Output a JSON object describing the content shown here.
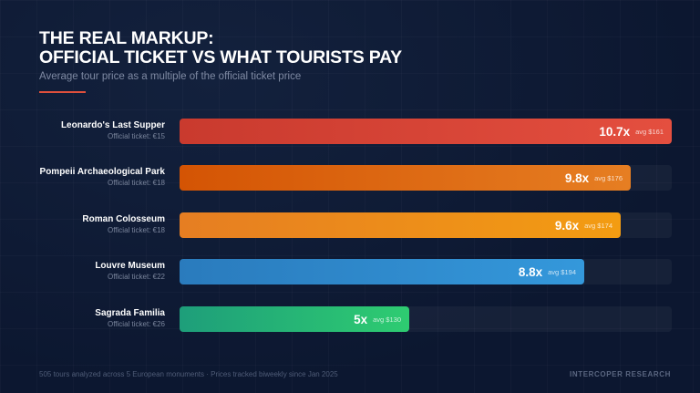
{
  "header": {
    "title_line1": "THE REAL MARKUP:",
    "title_line2": "OFFICIAL TICKET VS WHAT TOURISTS PAY",
    "subtitle": "Average tour price as a multiple of the official ticket price",
    "accent_color": "#e0503c"
  },
  "rows": [
    {
      "name": "Leonardo's Last Supper",
      "ticket": "Official ticket: €15",
      "multiple": "10.7x",
      "avg": "avg $161",
      "value": 10.7,
      "color_from": "#c93a2e",
      "color_to": "#e44f3f"
    },
    {
      "name": "Pompeii Archaeological Park",
      "ticket": "Official ticket: €18",
      "multiple": "9.8x",
      "avg": "avg $176",
      "value": 9.8,
      "color_from": "#d45404",
      "color_to": "#e67e22"
    },
    {
      "name": "Roman Colosseum",
      "ticket": "Official ticket: €18",
      "multiple": "9.6x",
      "avg": "avg $174",
      "value": 9.6,
      "color_from": "#e67e22",
      "color_to": "#f39c12"
    },
    {
      "name": "Louvre Museum",
      "ticket": "Official ticket: €22",
      "multiple": "8.8x",
      "avg": "avg $194",
      "value": 8.8,
      "color_from": "#2a7bbd",
      "color_to": "#3498db"
    },
    {
      "name": "Sagrada Familia",
      "ticket": "Official ticket: €26",
      "multiple": "5x",
      "avg": "avg $130",
      "value": 5.0,
      "color_from": "#1e9e7a",
      "color_to": "#2ecc71"
    }
  ],
  "footer": {
    "note": "505 tours analyzed across 5 European monuments · Prices tracked biweekly since Jan 2025",
    "brand": "INTERCOPER RESEARCH"
  },
  "chart_data": {
    "type": "bar",
    "orientation": "horizontal",
    "title": "THE REAL MARKUP: OFFICIAL TICKET VS WHAT TOURISTS PAY",
    "subtitle": "Average tour price as a multiple of the official ticket price",
    "categories": [
      "Leonardo's Last Supper",
      "Pompeii Archaeological Park",
      "Roman Colosseum",
      "Louvre Museum",
      "Sagrada Familia"
    ],
    "values": [
      10.7,
      9.8,
      9.6,
      8.8,
      5.0
    ],
    "official_ticket_eur": [
      15,
      18,
      18,
      22,
      26
    ],
    "avg_tour_price_usd": [
      161,
      176,
      174,
      194,
      130
    ],
    "xlim": [
      0,
      10.7
    ],
    "grid": false,
    "legend": null
  }
}
